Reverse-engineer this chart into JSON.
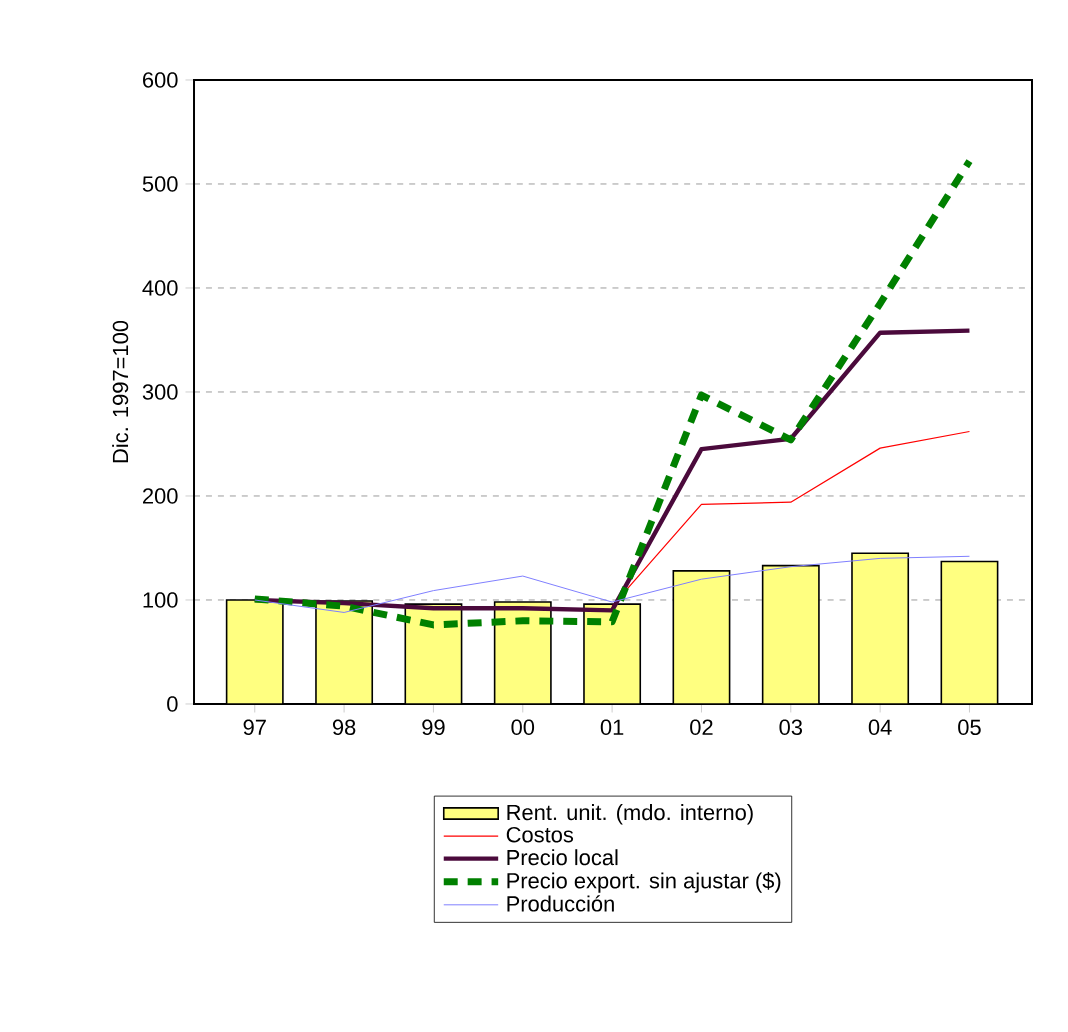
{
  "chart_data": {
    "type": "bar",
    "ylabel": "Dic. 1997=100",
    "categories": [
      "97",
      "98",
      "99",
      "00",
      "01",
      "02",
      "03",
      "04",
      "05"
    ],
    "ylim": [
      0,
      600
    ],
    "yticks": [
      0,
      100,
      200,
      300,
      400,
      500,
      600
    ],
    "grid": "y",
    "legend": "bottom",
    "series": [
      {
        "name": "Rent. unit. (mdo. interno)",
        "color": "#ffff80",
        "values": [
          100,
          99,
          96,
          98,
          96,
          128,
          133,
          145,
          137
        ]
      },
      {
        "name": "Costos",
        "type": "line",
        "color": "#ff0000",
        "line_style": "solid",
        "values": [
          null,
          null,
          null,
          null,
          94,
          192,
          194,
          246,
          262
        ]
      },
      {
        "name": "Precio local",
        "type": "line",
        "color": "#4b0a3c",
        "line_style": "solid",
        "values": [
          100,
          97,
          92,
          92,
          90,
          245,
          255,
          357,
          359
        ]
      },
      {
        "name": "Precio export. sin ajustar ($)",
        "type": "line",
        "color": "#008000",
        "line_style": "dashed",
        "values": [
          101,
          94,
          76,
          80,
          79,
          297,
          254,
          385,
          522
        ]
      },
      {
        "name": "Producción",
        "type": "line",
        "color": "#8080ff",
        "line_style": "solid",
        "values": [
          100,
          88,
          109,
          123,
          98,
          120,
          132,
          140,
          142
        ]
      }
    ]
  }
}
